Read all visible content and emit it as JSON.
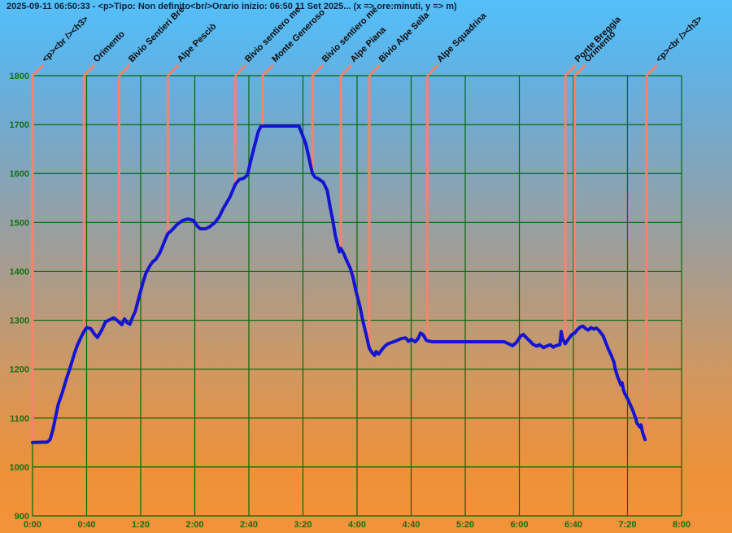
{
  "header": {
    "title": "2025-09-11 06:50:33 - <p>Tipo: Non definito<br/>Orario inizio: 06:50 11 Set 2025... (x => ore:minuti, y => m)"
  },
  "colors": {
    "title_text": "#0d2038",
    "grid": "#026a06",
    "tick_label": "#156f15",
    "waypoint_line": "#f5836e",
    "waypoint_label": "#0b0b0b",
    "track": "#1414d2",
    "bg_top": "#54bff9",
    "bg_bottom": "#f4933a"
  },
  "chart_data": {
    "type": "line",
    "title": "2025-09-11 06:50:33 - <p>Tipo: Non definito<br/>Orario inizio: 06:50 11 Set 2025... (x => ore:minuti, y => m)",
    "xlabel": "ore:minuti",
    "ylabel": "m",
    "grid": "on",
    "legend": "none",
    "xlim_min": [
      0,
      480
    ],
    "ylim_m": [
      900,
      1800
    ],
    "x_tick_min": [
      0,
      40,
      80,
      120,
      160,
      200,
      240,
      280,
      320,
      360,
      400,
      440,
      480
    ],
    "x_tick_labels": [
      "0:00",
      "0:40",
      "1:20",
      "2:00",
      "2:40",
      "3:20",
      "4:00",
      "4:40",
      "5:20",
      "6:00",
      "6:40",
      "7:20",
      "8:00"
    ],
    "y_tick_m": [
      900,
      1000,
      1100,
      1200,
      1300,
      1400,
      1500,
      1600,
      1700,
      1800
    ],
    "y_tick_labels": [
      "900",
      "1000",
      "1100",
      "1200",
      "1300",
      "1400",
      "1500",
      "1600",
      "1700",
      "1800"
    ],
    "series": [
      {
        "name": "elevation-profile",
        "points_min_m": [
          [
            0,
            1050
          ],
          [
            11,
            1051
          ],
          [
            13,
            1056
          ],
          [
            15,
            1075
          ],
          [
            17,
            1102
          ],
          [
            19,
            1128
          ],
          [
            22,
            1152
          ],
          [
            25,
            1180
          ],
          [
            28,
            1205
          ],
          [
            31,
            1232
          ],
          [
            33,
            1248
          ],
          [
            36,
            1266
          ],
          [
            38,
            1277
          ],
          [
            40,
            1285
          ],
          [
            43,
            1283
          ],
          [
            46,
            1271
          ],
          [
            48,
            1265
          ],
          [
            51,
            1279
          ],
          [
            54,
            1297
          ],
          [
            57,
            1301
          ],
          [
            60,
            1305
          ],
          [
            63,
            1299
          ],
          [
            66,
            1291
          ],
          [
            68,
            1303
          ],
          [
            70,
            1295
          ],
          [
            72,
            1292
          ],
          [
            74,
            1306
          ],
          [
            76,
            1318
          ],
          [
            79,
            1350
          ],
          [
            82,
            1380
          ],
          [
            84,
            1397
          ],
          [
            87,
            1412
          ],
          [
            89,
            1420
          ],
          [
            91,
            1424
          ],
          [
            94,
            1437
          ],
          [
            96,
            1450
          ],
          [
            98,
            1464
          ],
          [
            100,
            1477
          ],
          [
            103,
            1484
          ],
          [
            107,
            1496
          ],
          [
            111,
            1504
          ],
          [
            115,
            1507
          ],
          [
            119,
            1504
          ],
          [
            122,
            1492
          ],
          [
            124,
            1487
          ],
          [
            128,
            1487
          ],
          [
            131,
            1491
          ],
          [
            135,
            1500
          ],
          [
            138,
            1511
          ],
          [
            141,
            1528
          ],
          [
            146,
            1552
          ],
          [
            150,
            1578
          ],
          [
            153,
            1588
          ],
          [
            156,
            1590
          ],
          [
            159,
            1597
          ],
          [
            161,
            1622
          ],
          [
            164,
            1655
          ],
          [
            167,
            1686
          ],
          [
            169,
            1697
          ],
          [
            197,
            1697
          ],
          [
            199,
            1683
          ],
          [
            202,
            1662
          ],
          [
            204,
            1638
          ],
          [
            207,
            1600
          ],
          [
            209,
            1592
          ],
          [
            211,
            1590
          ],
          [
            215,
            1582
          ],
          [
            218,
            1565
          ],
          [
            220,
            1532
          ],
          [
            222,
            1505
          ],
          [
            224,
            1472
          ],
          [
            226,
            1450
          ],
          [
            227,
            1440
          ],
          [
            228,
            1447
          ],
          [
            230,
            1437
          ],
          [
            232,
            1424
          ],
          [
            235,
            1406
          ],
          [
            237,
            1388
          ],
          [
            239,
            1362
          ],
          [
            242,
            1330
          ],
          [
            244,
            1303
          ],
          [
            247,
            1268
          ],
          [
            249,
            1243
          ],
          [
            251,
            1234
          ],
          [
            253,
            1228
          ],
          [
            254,
            1236
          ],
          [
            256,
            1231
          ],
          [
            259,
            1242
          ],
          [
            261,
            1248
          ],
          [
            263,
            1252
          ],
          [
            266,
            1255
          ],
          [
            269,
            1258
          ],
          [
            272,
            1262
          ],
          [
            276,
            1264
          ],
          [
            278,
            1257
          ],
          [
            280,
            1261
          ],
          [
            283,
            1256
          ],
          [
            285,
            1262
          ],
          [
            287,
            1274
          ],
          [
            289,
            1270
          ],
          [
            291,
            1260
          ],
          [
            292,
            1258
          ],
          [
            296,
            1256
          ],
          [
            349,
            1256
          ],
          [
            352,
            1252
          ],
          [
            355,
            1248
          ],
          [
            358,
            1255
          ],
          [
            361,
            1268
          ],
          [
            363,
            1271
          ],
          [
            366,
            1262
          ],
          [
            368,
            1257
          ],
          [
            370,
            1251
          ],
          [
            373,
            1247
          ],
          [
            375,
            1250
          ],
          [
            378,
            1244
          ],
          [
            380,
            1247
          ],
          [
            383,
            1250
          ],
          [
            385,
            1245
          ],
          [
            387,
            1248
          ],
          [
            390,
            1250
          ],
          [
            391,
            1277
          ],
          [
            392,
            1262
          ],
          [
            394,
            1252
          ],
          [
            396,
            1260
          ],
          [
            398,
            1268
          ],
          [
            399,
            1271
          ],
          [
            401,
            1274
          ],
          [
            403,
            1281
          ],
          [
            405,
            1286
          ],
          [
            407,
            1288
          ],
          [
            409,
            1283
          ],
          [
            411,
            1280
          ],
          [
            413,
            1285
          ],
          [
            415,
            1282
          ],
          [
            417,
            1284
          ],
          [
            419,
            1279
          ],
          [
            422,
            1268
          ],
          [
            424,
            1254
          ],
          [
            426,
            1240
          ],
          [
            428,
            1228
          ],
          [
            430,
            1214
          ],
          [
            431,
            1200
          ],
          [
            433,
            1182
          ],
          [
            434,
            1176
          ],
          [
            435,
            1168
          ],
          [
            436,
            1172
          ],
          [
            437,
            1158
          ],
          [
            438,
            1150
          ],
          [
            440,
            1140
          ],
          [
            442,
            1128
          ],
          [
            444,
            1115
          ],
          [
            446,
            1100
          ],
          [
            447,
            1090
          ],
          [
            449,
            1082
          ],
          [
            450,
            1086
          ],
          [
            451,
            1072
          ],
          [
            453,
            1056
          ]
        ]
      }
    ],
    "waypoints": [
      {
        "label": "<p><br /><h3>",
        "time_min": 0,
        "elev_m": 1050
      },
      {
        "label": "Orimento",
        "time_min": 38,
        "elev_m": 1277
      },
      {
        "label": "Bivio Sentieri Bre",
        "time_min": 64,
        "elev_m": 1296
      },
      {
        "label": "Alpe Pesciò",
        "time_min": 100,
        "elev_m": 1477
      },
      {
        "label": "Bivio sentiero me",
        "time_min": 150,
        "elev_m": 1578
      },
      {
        "label": "Monte Generoso",
        "time_min": 170,
        "elev_m": 1697
      },
      {
        "label": "Bivio sentiero me",
        "time_min": 207,
        "elev_m": 1600
      },
      {
        "label": "Alpe Piana",
        "time_min": 228,
        "elev_m": 1447
      },
      {
        "label": "Bivio Alpe Sella",
        "time_min": 249,
        "elev_m": 1243
      },
      {
        "label": "Alpe Squadrina",
        "time_min": 292,
        "elev_m": 1258
      },
      {
        "label": "Ponte Breggia",
        "time_min": 394,
        "elev_m": 1252
      },
      {
        "label": "Orimento",
        "time_min": 401,
        "elev_m": 1274
      },
      {
        "label": "<p><br /><h3>",
        "time_min": 454,
        "elev_m": 1056
      }
    ]
  }
}
